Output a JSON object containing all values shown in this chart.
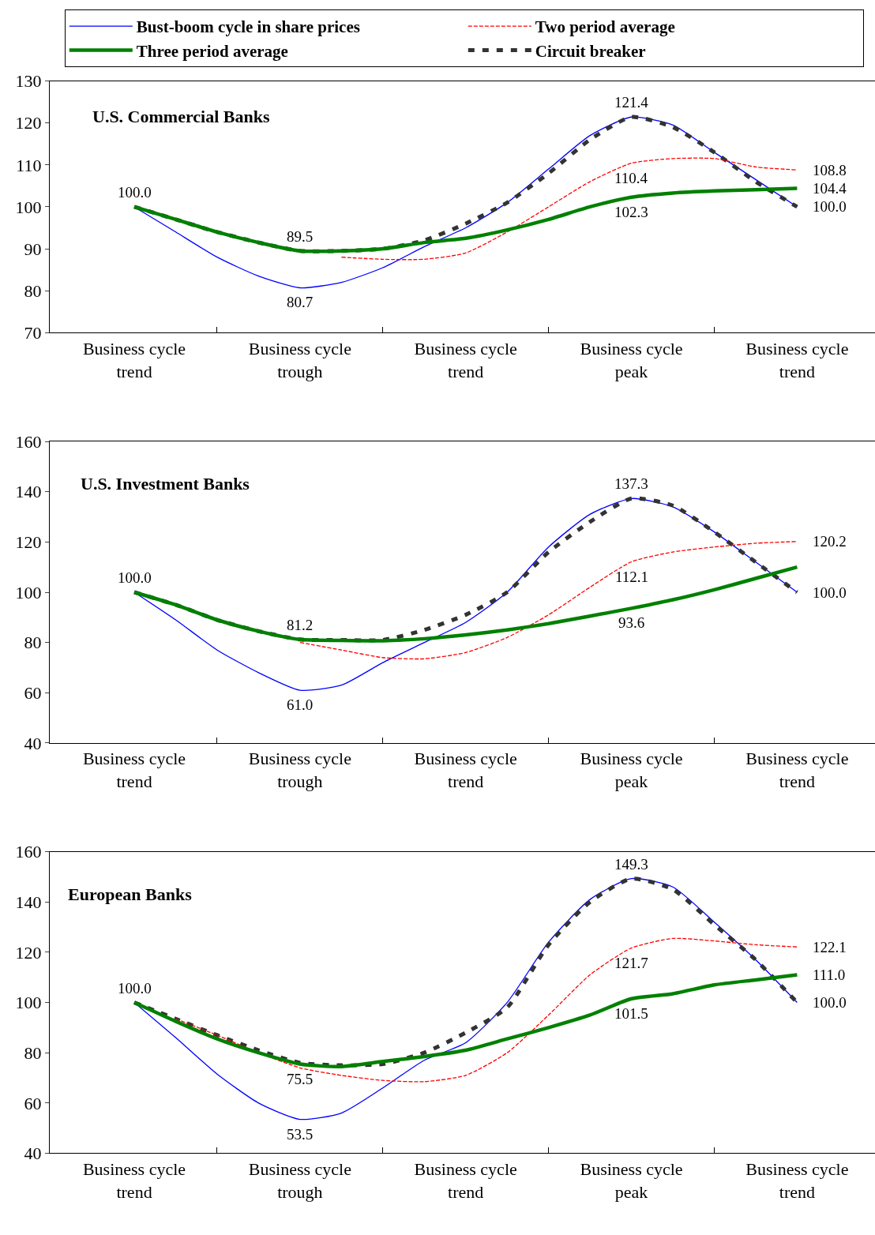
{
  "chart_data": [
    {
      "type": "line",
      "title": "U.S. Commercial Banks",
      "legend": "top",
      "marker": "none",
      "categories": [
        "Business cycle\ntrend",
        null,
        null,
        null,
        "Business cycle\ntrough",
        null,
        null,
        null,
        "Business cycle\ntrend",
        null,
        null,
        null,
        "Business cycle\npeak",
        null,
        null,
        null,
        "Business cycle\ntrend"
      ],
      "ylim": [
        70,
        130
      ],
      "yticks": [
        70,
        80,
        90,
        100,
        110,
        120,
        130
      ],
      "series": [
        {
          "name": "Bust-boom cycle in share prices",
          "color": "#0000ff",
          "line_style": "solid",
          "values": [
            100,
            94,
            88,
            83.5,
            80.7,
            82,
            85.5,
            90.5,
            95,
            101,
            109,
            117,
            121.4,
            119.5,
            113,
            106.5,
            100
          ],
          "value_labels": [
            "100.0",
            null,
            null,
            null,
            "80.7",
            null,
            null,
            null,
            null,
            null,
            null,
            null,
            "121.4",
            null,
            null,
            null,
            "100.0"
          ]
        },
        {
          "name": "Two period average",
          "color": "#ff0000",
          "line_style": "dashed",
          "values": [
            null,
            null,
            null,
            null,
            null,
            88,
            87.5,
            87.5,
            89,
            94,
            100,
            106,
            110.4,
            111.5,
            111.5,
            109.5,
            108.8
          ],
          "value_labels": [
            null,
            null,
            null,
            null,
            null,
            null,
            null,
            null,
            null,
            null,
            null,
            null,
            "110.4",
            null,
            null,
            null,
            "108.8"
          ]
        },
        {
          "name": "Three period average",
          "color": "#008000",
          "line_style": "solid",
          "values": [
            100,
            97,
            94,
            91.5,
            89.5,
            89.5,
            90,
            91.5,
            92.5,
            94.5,
            97,
            100,
            102.3,
            103.3,
            103.8,
            104.1,
            104.4
          ],
          "value_labels": [
            null,
            null,
            null,
            null,
            "89.5",
            null,
            null,
            null,
            null,
            null,
            null,
            null,
            "102.3",
            null,
            null,
            null,
            "104.4"
          ]
        },
        {
          "name": "Circuit breaker",
          "color": "#333333",
          "line_style": "dashed",
          "values": [
            100,
            97,
            94,
            91.5,
            89.5,
            89.5,
            90,
            92,
            96,
            101,
            108,
            116,
            121.4,
            119,
            113,
            106,
            100
          ]
        }
      ]
    },
    {
      "type": "line",
      "title": "U.S. Investment Banks",
      "marker": "none",
      "categories": [
        "Business cycle\ntrend",
        null,
        null,
        null,
        "Business cycle\ntrough",
        null,
        null,
        null,
        "Business cycle\ntrend",
        null,
        null,
        null,
        "Business cycle\npeak",
        null,
        null,
        null,
        "Business cycle\ntrend"
      ],
      "ylim": [
        40,
        160
      ],
      "yticks": [
        40,
        60,
        80,
        100,
        120,
        140,
        160
      ],
      "series": [
        {
          "color": "#0000ff",
          "line_style": "solid",
          "values": [
            100,
            89,
            77,
            68,
            61,
            63,
            72,
            80,
            88,
            100,
            118,
            131,
            137.3,
            134,
            124,
            112,
            100
          ],
          "value_labels": [
            "100.0",
            null,
            null,
            null,
            "61.0",
            null,
            null,
            null,
            null,
            null,
            null,
            null,
            "137.3",
            null,
            null,
            null,
            "100.0"
          ]
        },
        {
          "color": "#ff0000",
          "line_style": "dashed",
          "values": [
            null,
            null,
            null,
            null,
            80,
            77,
            74,
            73.5,
            76,
            82,
            91,
            102,
            112.1,
            116,
            118,
            119.5,
            120.2
          ],
          "value_labels": [
            null,
            null,
            null,
            null,
            null,
            null,
            null,
            null,
            null,
            null,
            null,
            null,
            "112.1",
            null,
            null,
            null,
            "120.2"
          ]
        },
        {
          "color": "#008000",
          "line_style": "solid",
          "values": [
            100,
            95,
            89,
            84.5,
            81.2,
            80.8,
            80.7,
            81.5,
            83,
            85,
            87.5,
            90.5,
            93.6,
            97,
            101,
            105.5,
            110
          ],
          "value_labels": [
            null,
            null,
            null,
            null,
            "81.2",
            null,
            null,
            null,
            null,
            null,
            null,
            null,
            "93.6",
            null,
            null,
            null,
            null
          ]
        },
        {
          "color": "#333333",
          "line_style": "dashed",
          "values": [
            100,
            95,
            89,
            84.5,
            81.2,
            81,
            81,
            85,
            91,
            100,
            116,
            128,
            137.3,
            134.5,
            124,
            112,
            100
          ]
        }
      ]
    },
    {
      "type": "line",
      "title": "European Banks",
      "marker": "none",
      "categories": [
        "Business cycle\ntrend",
        null,
        null,
        null,
        "Business cycle\ntrough",
        null,
        null,
        null,
        "Business cycle\ntrend",
        null,
        null,
        null,
        "Business cycle\npeak",
        null,
        null,
        null,
        "Business cycle\ntrend"
      ],
      "ylim": [
        40,
        160
      ],
      "yticks": [
        40,
        60,
        80,
        100,
        120,
        140,
        160
      ],
      "series": [
        {
          "color": "#0000ff",
          "line_style": "solid",
          "values": [
            100,
            86,
            71.5,
            60,
            53.5,
            56,
            66,
            77,
            84,
            100,
            124,
            141,
            149.3,
            146,
            132,
            117,
            100
          ],
          "value_labels": [
            "100.0",
            null,
            null,
            null,
            "53.5",
            null,
            null,
            null,
            null,
            null,
            null,
            null,
            "149.3",
            null,
            null,
            null,
            "100.0"
          ]
        },
        {
          "color": "#ff0000",
          "line_style": "dashed",
          "values": [
            null,
            93.5,
            87,
            80,
            74,
            71,
            69,
            68.5,
            71,
            80,
            95,
            111,
            121.7,
            125.5,
            124.5,
            123,
            122.1
          ],
          "value_labels": [
            null,
            null,
            null,
            null,
            null,
            null,
            null,
            null,
            null,
            null,
            null,
            null,
            "121.7",
            null,
            null,
            null,
            "122.1"
          ]
        },
        {
          "color": "#008000",
          "line_style": "solid",
          "values": [
            100,
            92.5,
            85.5,
            80,
            75.5,
            74.5,
            76.5,
            78.5,
            81,
            85.5,
            90,
            95,
            101.5,
            103.5,
            107,
            109,
            111
          ],
          "value_labels": [
            null,
            null,
            null,
            null,
            "75.5",
            null,
            null,
            null,
            null,
            null,
            null,
            null,
            "101.5",
            null,
            null,
            null,
            "111.0"
          ]
        },
        {
          "color": "#333333",
          "line_style": "dashed",
          "values": [
            100,
            93.5,
            87,
            81,
            76,
            75,
            75.5,
            80,
            88,
            98,
            123,
            140,
            149.3,
            145,
            131,
            117,
            100
          ]
        }
      ]
    }
  ]
}
